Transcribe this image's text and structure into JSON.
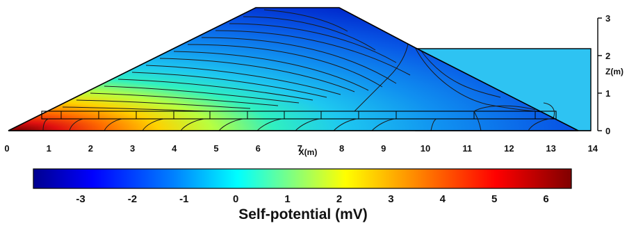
{
  "figure": {
    "x_axis": {
      "label": "X(m)",
      "ticks": [
        "0",
        "1",
        "2",
        "3",
        "4",
        "5",
        "6",
        "7",
        "8",
        "9",
        "10",
        "11",
        "12",
        "13",
        "14"
      ]
    },
    "z_axis": {
      "label": "Z(m)",
      "ticks": [
        "0",
        "1",
        "2",
        "3"
      ]
    },
    "colorbar": {
      "title": "Self-potential (mV)",
      "ticks": [
        "-3",
        "-2",
        "-1",
        "0",
        "1",
        "2",
        "3",
        "4",
        "5",
        "6"
      ],
      "colormap": "jet",
      "colors": [
        "#00008f",
        "#0000ff",
        "#0080ff",
        "#00ffff",
        "#80ff80",
        "#ffff00",
        "#ff8000",
        "#ff0000",
        "#800000"
      ]
    },
    "colors": {
      "reservoir": "#2ec3f2",
      "outline": "#000000"
    }
  }
}
